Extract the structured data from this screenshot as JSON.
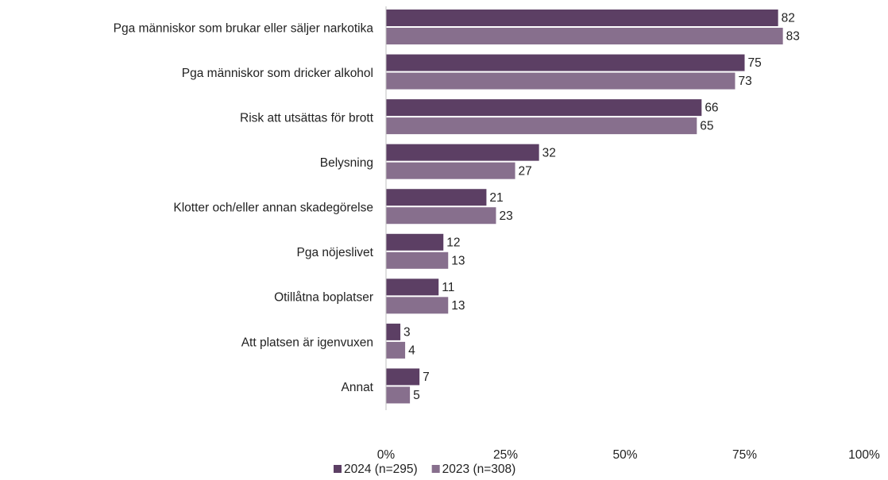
{
  "chart_data": {
    "type": "barh",
    "categories": [
      "Pga människor som brukar eller säljer narkotika",
      "Pga människor som dricker alkohol",
      "Risk att utsättas för brott",
      "Belysning",
      "Klotter och/eller annan skadegörelse",
      "Pga nöjeslivet",
      "Otillåtna boplatser",
      "Att platsen är igenvuxen",
      "Annat"
    ],
    "series": [
      {
        "name": "2024 (n=295)",
        "color": "#5c3f64",
        "values": [
          82,
          75,
          66,
          32,
          21,
          12,
          11,
          3,
          7
        ]
      },
      {
        "name": "2023 (n=308)",
        "color": "#876f8d",
        "values": [
          83,
          73,
          65,
          27,
          23,
          13,
          13,
          4,
          5
        ]
      }
    ],
    "xlim": [
      0,
      100
    ],
    "xticks": [
      {
        "value": 0,
        "label": "0%"
      },
      {
        "value": 25,
        "label": "25%"
      },
      {
        "value": 50,
        "label": "50%"
      },
      {
        "value": 75,
        "label": "75%"
      },
      {
        "value": 100,
        "label": "100%"
      }
    ],
    "legend": "bottom"
  }
}
